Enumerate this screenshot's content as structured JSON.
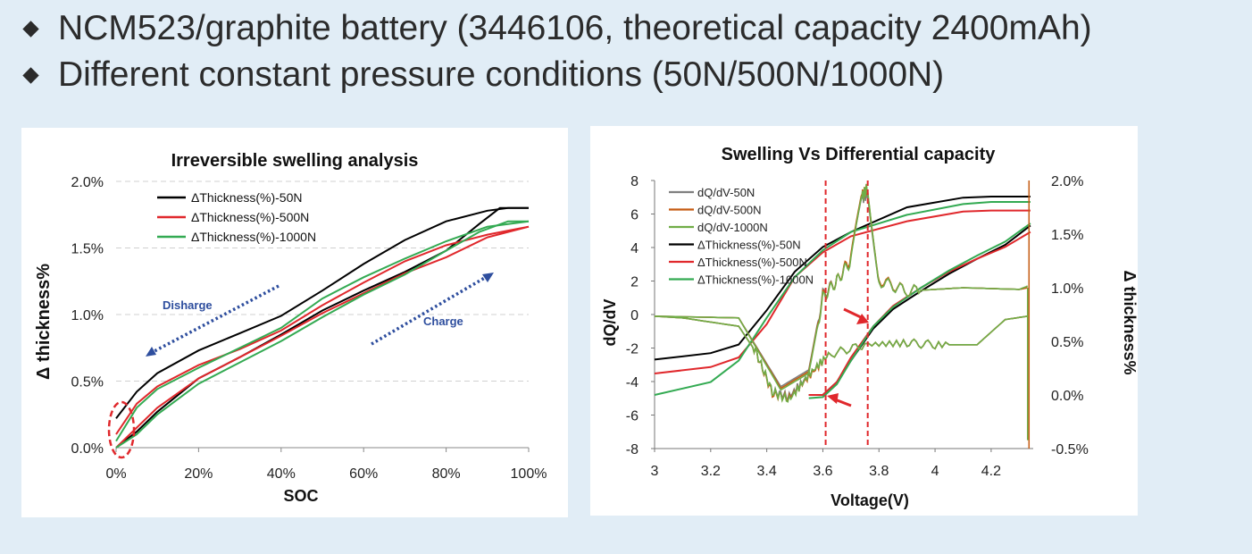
{
  "header": {
    "line1": "NCM523/graphite battery (3446106, theoretical capacity 2400mAh)",
    "line2": "Different constant pressure conditions (50N/500N/1000N)"
  },
  "colors": {
    "series_50N": "#000000",
    "series_500N": "#e0282c",
    "series_1000N": "#33aa52",
    "dqdv_50N": "#7f7f7f",
    "dqdv_500N": "#c55a11",
    "dqdv_1000N": "#70ad47",
    "annotation_arrow": "#2e4e9e",
    "marker": "#e0282c"
  },
  "chart_data": [
    {
      "type": "line",
      "title": "Irreversible swelling analysis",
      "xlabel": "SOC",
      "ylabel": "Δ thickness%",
      "xlim": [
        0,
        100
      ],
      "ylim": [
        0,
        2.0
      ],
      "x_ticks": [
        "0%",
        "20%",
        "40%",
        "60%",
        "80%",
        "100%"
      ],
      "y_ticks": [
        "0.0%",
        "0.5%",
        "1.0%",
        "1.5%",
        "2.0%"
      ],
      "grid": "horizontal dashed",
      "legend": "top-left",
      "annotations": [
        {
          "text": "Disharge",
          "arrow": "dotted, pointing toward low SOC"
        },
        {
          "text": "Charge",
          "arrow": "dotted, pointing toward high SOC"
        },
        {
          "marker": "red dashed ellipse at 0% SOC"
        }
      ],
      "series": [
        {
          "name": "ΔThickness(%)-50N",
          "color": "#000000",
          "charge": {
            "soc": [
              0,
              5,
              10,
              20,
              30,
              40,
              50,
              60,
              70,
              80,
              88,
              93,
              100
            ],
            "values": [
              0.0,
              0.12,
              0.27,
              0.52,
              0.68,
              0.85,
              1.03,
              1.18,
              1.32,
              1.48,
              1.68,
              1.8,
              1.8
            ]
          },
          "discharge": {
            "soc": [
              100,
              95,
              90,
              80,
              70,
              60,
              50,
              40,
              30,
              20,
              10,
              5,
              0
            ],
            "values": [
              1.8,
              1.8,
              1.78,
              1.7,
              1.56,
              1.38,
              1.18,
              0.99,
              0.86,
              0.73,
              0.56,
              0.42,
              0.22
            ]
          }
        },
        {
          "name": "ΔThickness(%)-500N",
          "color": "#e0282c",
          "charge": {
            "soc": [
              0,
              5,
              10,
              20,
              30,
              40,
              50,
              60,
              70,
              80,
              90,
              100
            ],
            "values": [
              0.0,
              0.15,
              0.3,
              0.52,
              0.68,
              0.84,
              1.01,
              1.16,
              1.31,
              1.43,
              1.58,
              1.66
            ]
          },
          "discharge": {
            "soc": [
              100,
              95,
              90,
              80,
              70,
              60,
              50,
              40,
              30,
              20,
              10,
              5,
              0
            ],
            "values": [
              1.66,
              1.63,
              1.6,
              1.52,
              1.4,
              1.24,
              1.07,
              0.88,
              0.74,
              0.62,
              0.46,
              0.33,
              0.1
            ]
          }
        },
        {
          "name": "ΔThickness(%)-1000N",
          "color": "#33aa52",
          "charge": {
            "soc": [
              0,
              5,
              10,
              20,
              30,
              40,
              50,
              60,
              70,
              80,
              88,
              95,
              100
            ],
            "values": [
              0.0,
              0.1,
              0.25,
              0.48,
              0.64,
              0.8,
              0.98,
              1.15,
              1.3,
              1.48,
              1.62,
              1.7,
              1.7
            ]
          },
          "discharge": {
            "soc": [
              100,
              95,
              90,
              80,
              70,
              60,
              50,
              40,
              30,
              20,
              10,
              5,
              0
            ],
            "values": [
              1.7,
              1.68,
              1.66,
              1.55,
              1.42,
              1.28,
              1.12,
              0.9,
              0.75,
              0.6,
              0.44,
              0.3,
              0.05
            ]
          }
        }
      ]
    },
    {
      "type": "line",
      "title": "Swelling Vs Differential capacity",
      "xlabel": "Voltage(V)",
      "ylabel": "dQ/dV",
      "y2label": "Δ thickness%",
      "xlim": [
        3.0,
        4.35
      ],
      "ylim": [
        -8,
        8
      ],
      "y2lim": [
        -0.5,
        2.0
      ],
      "x_ticks": [
        "3",
        "3.2",
        "3.4",
        "3.6",
        "3.8",
        "4",
        "4.2"
      ],
      "y_ticks": [
        "-8",
        "-6",
        "-4",
        "-2",
        "0",
        "2",
        "4",
        "6",
        "8"
      ],
      "y2_ticks": [
        "-0.5%",
        "0.0%",
        "0.5%",
        "1.0%",
        "1.5%",
        "2.0%"
      ],
      "legend": "top-left",
      "vertical_markers": [
        3.61,
        3.76
      ],
      "series": [
        {
          "name": "dQ/dV-50N",
          "color": "#7f7f7f",
          "axis": "left",
          "charge": {
            "x": [
              3.0,
              3.3,
              3.45,
              3.55,
              3.6,
              3.65,
              3.7,
              3.74,
              3.76,
              3.8,
              3.9,
              4.0,
              4.1,
              4.3,
              4.33
            ],
            "y": [
              -0.1,
              -0.2,
              -4.3,
              -3.3,
              1.2,
              2.0,
              3.3,
              6.9,
              7.3,
              2.0,
              1.4,
              1.5,
              1.6,
              1.5,
              1.6
            ]
          },
          "discharge": {
            "x": [
              4.33,
              4.25,
              4.15,
              4.0,
              3.9,
              3.75,
              3.62,
              3.55,
              3.48,
              3.42,
              3.36,
              3.3,
              3.1,
              3.0
            ],
            "y": [
              -0.1,
              -0.3,
              -1.8,
              -1.8,
              -1.7,
              -1.8,
              -2.4,
              -3.6,
              -4.9,
              -4.6,
              -2.2,
              -0.7,
              -0.2,
              -0.1
            ]
          }
        },
        {
          "name": "dQ/dV-500N",
          "color": "#c55a11",
          "axis": "left",
          "charge": {
            "x": [
              3.0,
              3.3,
              3.45,
              3.55,
              3.6,
              3.65,
              3.7,
              3.74,
              3.76,
              3.8,
              3.9,
              4.0,
              4.1,
              4.3,
              4.33
            ],
            "y": [
              -0.1,
              -0.2,
              -4.4,
              -3.4,
              1.1,
              2.0,
              3.4,
              7.1,
              7.5,
              2.1,
              1.4,
              1.5,
              1.6,
              1.5,
              1.6
            ]
          },
          "discharge": {
            "x": [
              4.33,
              4.25,
              4.15,
              4.0,
              3.9,
              3.75,
              3.62,
              3.55,
              3.48,
              3.42,
              3.36,
              3.3,
              3.1,
              3.0
            ],
            "y": [
              -0.1,
              -0.3,
              -1.8,
              -1.8,
              -1.7,
              -1.8,
              -2.4,
              -3.7,
              -5.0,
              -4.7,
              -2.2,
              -0.7,
              -0.2,
              -0.1
            ]
          }
        },
        {
          "name": "dQ/dV-1000N",
          "color": "#70ad47",
          "axis": "left",
          "charge": {
            "x": [
              3.0,
              3.3,
              3.45,
              3.55,
              3.6,
              3.65,
              3.7,
              3.74,
              3.76,
              3.8,
              3.9,
              4.0,
              4.1,
              4.3,
              4.33
            ],
            "y": [
              -0.1,
              -0.2,
              -4.5,
              -3.5,
              1.0,
              2.0,
              3.2,
              7.0,
              7.6,
              2.0,
              1.4,
              1.5,
              1.6,
              1.5,
              1.7
            ]
          },
          "discharge": {
            "x": [
              4.33,
              4.25,
              4.15,
              4.0,
              3.9,
              3.75,
              3.62,
              3.55,
              3.48,
              3.42,
              3.36,
              3.3,
              3.1,
              3.0
            ],
            "y": [
              -0.1,
              -0.3,
              -1.8,
              -1.8,
              -1.7,
              -1.8,
              -2.4,
              -3.6,
              -5.1,
              -4.6,
              -2.2,
              -0.7,
              -0.2,
              -0.1
            ]
          }
        },
        {
          "name": "ΔThickness(%)-50N",
          "color": "#000000",
          "axis": "right",
          "charge": {
            "x": [
              3.55,
              3.6,
              3.65,
              3.7,
              3.78,
              3.85,
              3.95,
              4.05,
              4.15,
              4.25,
              4.34
            ],
            "y": [
              0.0,
              0.0,
              0.12,
              0.32,
              0.62,
              0.8,
              0.97,
              1.13,
              1.27,
              1.4,
              1.58
            ]
          },
          "discharge": {
            "x": [
              4.34,
              4.2,
              4.1,
              3.9,
              3.7,
              3.6,
              3.5,
              3.4,
              3.3,
              3.2,
              3.0
            ],
            "y": [
              1.85,
              1.85,
              1.84,
              1.75,
              1.52,
              1.38,
              1.15,
              0.79,
              0.47,
              0.39,
              0.33
            ]
          }
        },
        {
          "name": "ΔThickness(%)-500N",
          "color": "#e0282c",
          "axis": "right",
          "charge": {
            "x": [
              3.55,
              3.6,
              3.65,
              3.7,
              3.78,
              3.85,
              3.95,
              4.05,
              4.15,
              4.25,
              4.34
            ],
            "y": [
              0.0,
              0.0,
              0.12,
              0.35,
              0.64,
              0.83,
              1.0,
              1.15,
              1.27,
              1.38,
              1.52
            ]
          },
          "discharge": {
            "x": [
              4.34,
              4.2,
              4.1,
              3.9,
              3.7,
              3.6,
              3.5,
              3.4,
              3.3,
              3.2,
              3.0
            ],
            "y": [
              1.72,
              1.72,
              1.71,
              1.62,
              1.48,
              1.33,
              1.1,
              0.66,
              0.35,
              0.26,
              0.2
            ]
          }
        },
        {
          "name": "ΔThickness(%)-1000N",
          "color": "#33aa52",
          "axis": "right",
          "charge": {
            "x": [
              3.55,
              3.6,
              3.65,
              3.7,
              3.78,
              3.85,
              3.95,
              4.05,
              4.15,
              4.25,
              4.34
            ],
            "y": [
              -0.03,
              -0.02,
              0.1,
              0.32,
              0.64,
              0.82,
              1.0,
              1.16,
              1.3,
              1.43,
              1.6
            ]
          },
          "discharge": {
            "x": [
              4.34,
              4.2,
              4.1,
              3.9,
              3.7,
              3.6,
              3.5,
              3.4,
              3.3,
              3.2,
              3.0
            ],
            "y": [
              1.8,
              1.8,
              1.78,
              1.68,
              1.52,
              1.35,
              1.1,
              0.72,
              0.32,
              0.12,
              0.0
            ]
          }
        }
      ]
    }
  ]
}
